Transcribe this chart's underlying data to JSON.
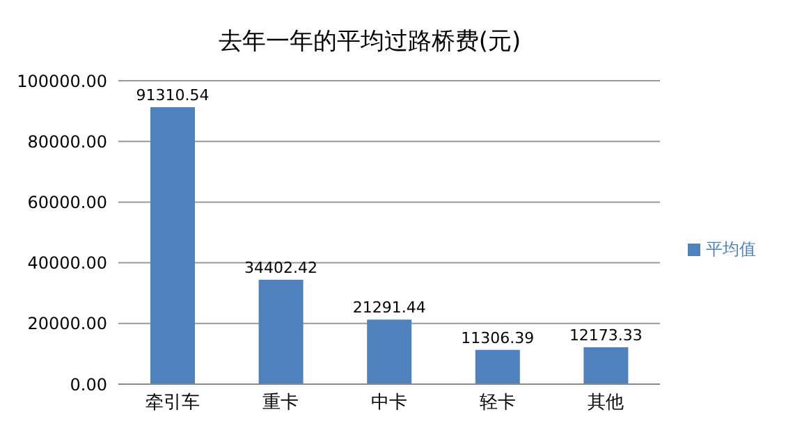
{
  "chart_data": {
    "type": "bar",
    "title": "去年一年的平均过路桥费(元)",
    "categories": [
      "牵引车",
      "重卡",
      "中卡",
      "轻卡",
      "其他"
    ],
    "series": [
      {
        "name": "平均值",
        "color": "#4f81bd",
        "values": [
          91310.54,
          34402.42,
          21291.44,
          11306.39,
          12173.33
        ]
      }
    ],
    "ylim": [
      0,
      100000
    ],
    "yticks": [
      {
        "value": 0,
        "label": "0.00"
      },
      {
        "value": 20000,
        "label": "20000.00"
      },
      {
        "value": 40000,
        "label": "40000.00"
      },
      {
        "value": 60000,
        "label": "60000.00"
      },
      {
        "value": 80000,
        "label": "80000.00"
      },
      {
        "value": 100000,
        "label": "100000.00"
      }
    ],
    "grid": "y",
    "legend": "right",
    "data_labels": true
  }
}
